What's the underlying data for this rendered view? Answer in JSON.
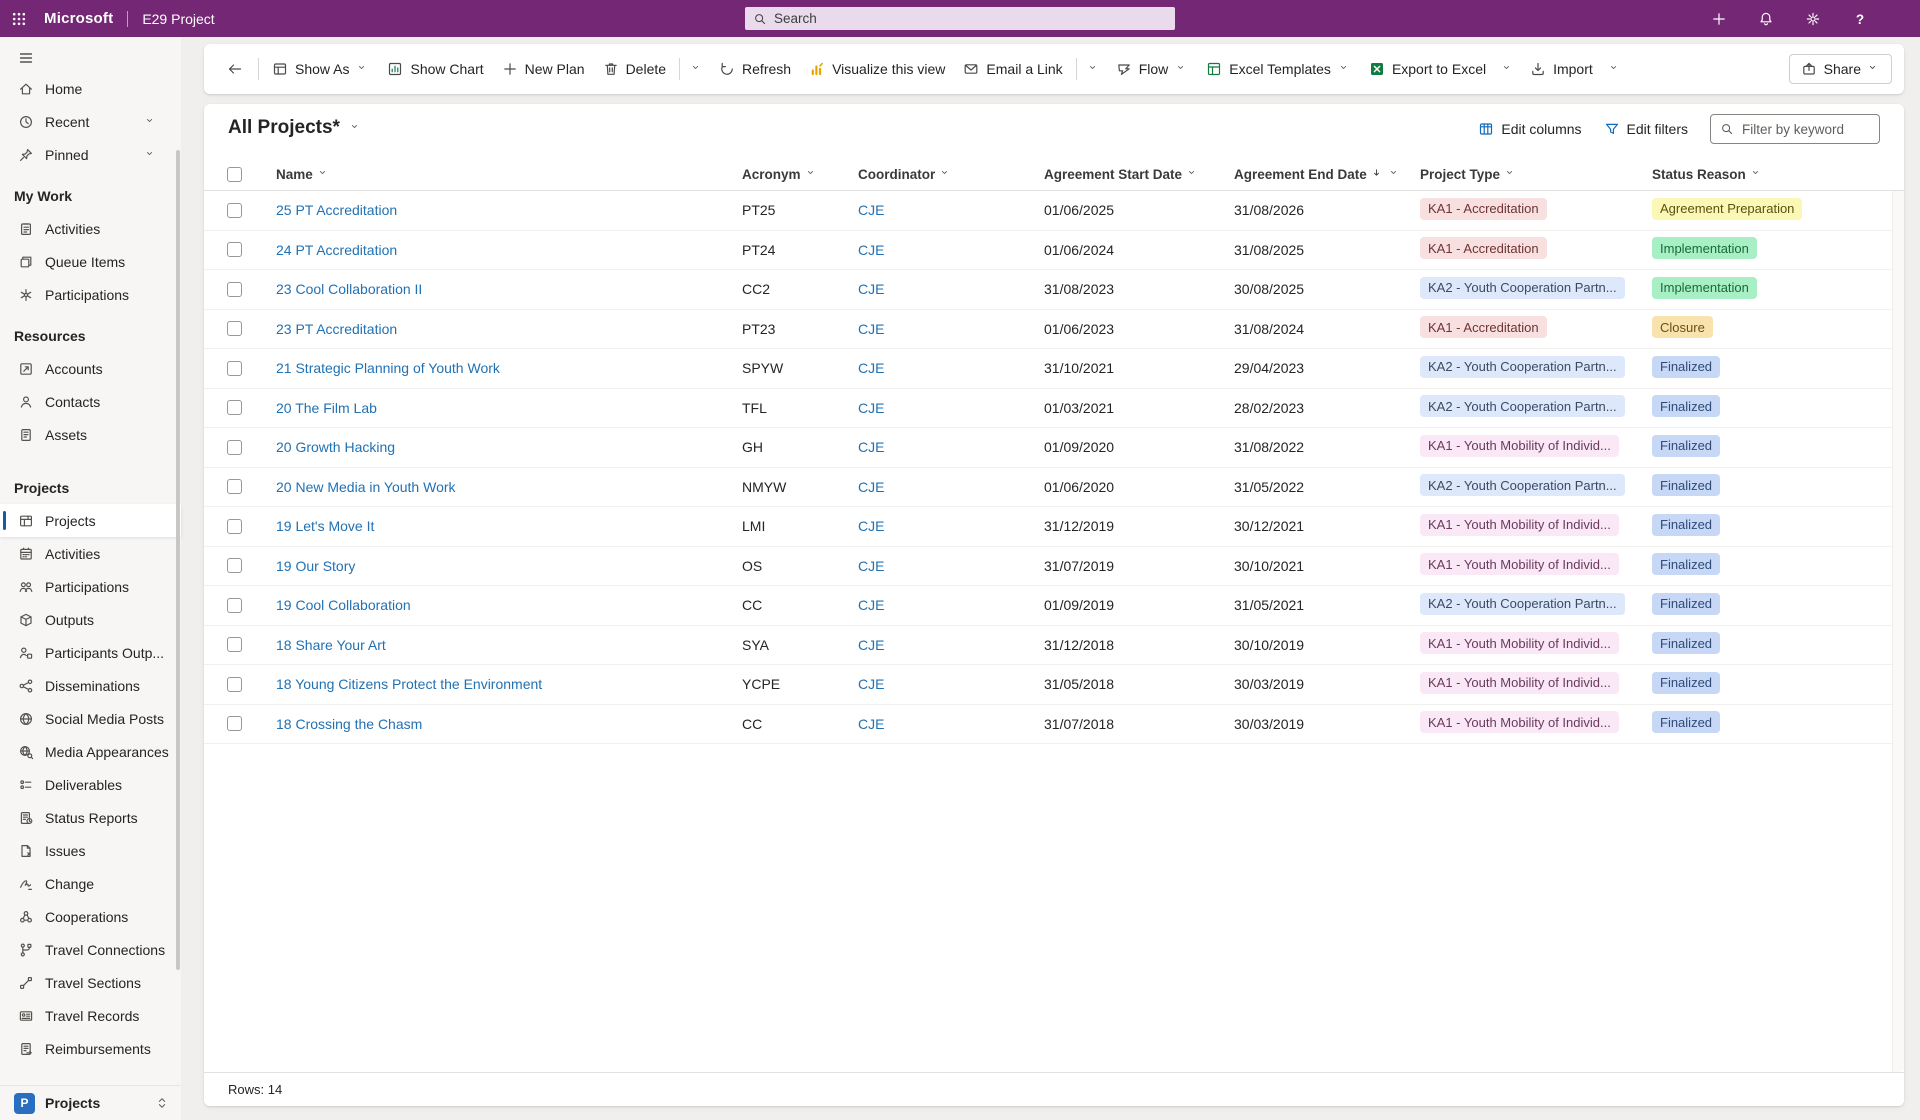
{
  "colors": {
    "topbar": "#742774",
    "accent": "#115EA3",
    "link": "#2271B3"
  },
  "topbar": {
    "brand": "Microsoft",
    "app_name": "E29 Project",
    "search_placeholder": "Search",
    "icons": [
      "add",
      "bell",
      "gear",
      "help"
    ]
  },
  "command_bar": {
    "items": [
      {
        "type": "back",
        "icon": "arrow-left"
      },
      {
        "type": "divider"
      },
      {
        "type": "button",
        "icon": "show-as",
        "label": "Show As",
        "chevron": true
      },
      {
        "type": "button",
        "icon": "show-chart",
        "label": "Show Chart"
      },
      {
        "type": "button",
        "icon": "add",
        "label": "New Plan"
      },
      {
        "type": "button",
        "icon": "delete",
        "label": "Delete"
      },
      {
        "type": "divider"
      },
      {
        "type": "overflow"
      },
      {
        "type": "button",
        "icon": "refresh",
        "label": "Refresh"
      },
      {
        "type": "button",
        "icon": "visualize",
        "label": "Visualize this view"
      },
      {
        "type": "button",
        "icon": "email",
        "label": "Email a Link"
      },
      {
        "type": "divider"
      },
      {
        "type": "overflow"
      },
      {
        "type": "button",
        "icon": "flow",
        "label": "Flow",
        "chevron": true
      },
      {
        "type": "button",
        "icon": "excel-templates",
        "label": "Excel Templates",
        "chevron": true
      },
      {
        "type": "button",
        "icon": "export-excel",
        "label": "Export to Excel"
      },
      {
        "type": "overflow"
      },
      {
        "type": "button",
        "icon": "import",
        "label": "Import"
      },
      {
        "type": "overflow"
      }
    ],
    "share_label": "Share"
  },
  "sidebar": {
    "top_items": [
      {
        "label": "Home",
        "icon": "home"
      },
      {
        "label": "Recent",
        "icon": "clock",
        "chevron": true
      },
      {
        "label": "Pinned",
        "icon": "pin",
        "chevron": true
      }
    ],
    "groups": [
      {
        "header": "My Work",
        "items": [
          {
            "label": "Activities",
            "icon": "clipboard"
          },
          {
            "label": "Queue Items",
            "icon": "queue"
          },
          {
            "label": "Participations",
            "icon": "network"
          }
        ]
      },
      {
        "header": "Resources",
        "items": [
          {
            "label": "Accounts",
            "icon": "accounts"
          },
          {
            "label": "Contacts",
            "icon": "contact"
          },
          {
            "label": "Assets",
            "icon": "asset"
          }
        ]
      },
      {
        "header": "Projects",
        "items": [
          {
            "label": "Projects",
            "icon": "projects",
            "selected": true
          },
          {
            "label": "Activities",
            "icon": "calendar"
          },
          {
            "label": "Participations",
            "icon": "people"
          },
          {
            "label": "Outputs",
            "icon": "cube"
          },
          {
            "label": "Participants Outp...",
            "icon": "person-node"
          },
          {
            "label": "Disseminations",
            "icon": "share-nodes"
          },
          {
            "label": "Social Media Posts",
            "icon": "globe"
          },
          {
            "label": "Media Appearances",
            "icon": "globe-search"
          },
          {
            "label": "Deliverables",
            "icon": "task-list"
          },
          {
            "label": "Status Reports",
            "icon": "report"
          },
          {
            "label": "Issues",
            "icon": "doc-dismiss"
          },
          {
            "label": "Change",
            "icon": "pen"
          },
          {
            "label": "Cooperations",
            "icon": "org"
          },
          {
            "label": "Travel Connections",
            "icon": "flow-nodes"
          },
          {
            "label": "Travel Sections",
            "icon": "route"
          },
          {
            "label": "Travel Records",
            "icon": "id-card"
          },
          {
            "label": "Reimbursements",
            "icon": "receipt"
          }
        ]
      }
    ],
    "area_switcher": {
      "initial": "P",
      "label": "Projects"
    }
  },
  "view": {
    "title": "All Projects*",
    "edit_columns": "Edit columns",
    "edit_filters": "Edit filters",
    "filter_placeholder": "Filter by keyword",
    "rows_label": "Rows: 14"
  },
  "badge_styles": {
    "rose": {
      "bg": "#F9E0E0",
      "fg": "#6E3333"
    },
    "lightblue": {
      "bg": "#DEE8FB",
      "fg": "#3A4A66"
    },
    "pink": {
      "bg": "#FAE8F6",
      "fg": "#693A5E"
    },
    "yellow": {
      "bg": "#FBF7B4",
      "fg": "#5A530F"
    },
    "green": {
      "bg": "#A9EFC5",
      "fg": "#176B38"
    },
    "orange": {
      "bg": "#F8E2AE",
      "fg": "#6E4F12"
    },
    "periwinkle": {
      "bg": "#C7D7F6",
      "fg": "#2F4B78"
    }
  },
  "table": {
    "columns": [
      {
        "label": "Name"
      },
      {
        "label": "Acronym"
      },
      {
        "label": "Coordinator"
      },
      {
        "label": "Agreement Start Date"
      },
      {
        "label": "Agreement End Date",
        "sorted": "desc"
      },
      {
        "label": "Project Type"
      },
      {
        "label": "Status Reason"
      }
    ],
    "rows": [
      {
        "name": "25 PT Accreditation",
        "acronym": "PT25",
        "coordinator": "CJE",
        "start_date": "01/06/2025",
        "end_date": "31/08/2026",
        "project_type": {
          "label": "KA1 - Accreditation",
          "style": "rose"
        },
        "status_reason": {
          "label": "Agreement Preparation",
          "style": "yellow"
        }
      },
      {
        "name": "24 PT Accreditation",
        "acronym": "PT24",
        "coordinator": "CJE",
        "start_date": "01/06/2024",
        "end_date": "31/08/2025",
        "project_type": {
          "label": "KA1 - Accreditation",
          "style": "rose"
        },
        "status_reason": {
          "label": "Implementation",
          "style": "green"
        }
      },
      {
        "name": "23 Cool Collaboration II",
        "acronym": "CC2",
        "coordinator": "CJE",
        "start_date": "31/08/2023",
        "end_date": "30/08/2025",
        "project_type": {
          "label": "KA2 - Youth Cooperation Partn...",
          "style": "lightblue"
        },
        "status_reason": {
          "label": "Implementation",
          "style": "green"
        }
      },
      {
        "name": "23 PT Accreditation",
        "acronym": "PT23",
        "coordinator": "CJE",
        "start_date": "01/06/2023",
        "end_date": "31/08/2024",
        "project_type": {
          "label": "KA1 - Accreditation",
          "style": "rose"
        },
        "status_reason": {
          "label": "Closure",
          "style": "orange"
        }
      },
      {
        "name": "21 Strategic Planning of Youth Work",
        "acronym": "SPYW",
        "coordinator": "CJE",
        "start_date": "31/10/2021",
        "end_date": "29/04/2023",
        "project_type": {
          "label": "KA2 - Youth Cooperation Partn...",
          "style": "lightblue"
        },
        "status_reason": {
          "label": "Finalized",
          "style": "periwinkle"
        }
      },
      {
        "name": "20 The Film Lab",
        "acronym": "TFL",
        "coordinator": "CJE",
        "start_date": "01/03/2021",
        "end_date": "28/02/2023",
        "project_type": {
          "label": "KA2 - Youth Cooperation Partn...",
          "style": "lightblue"
        },
        "status_reason": {
          "label": "Finalized",
          "style": "periwinkle"
        }
      },
      {
        "name": "20 Growth Hacking",
        "acronym": "GH",
        "coordinator": "CJE",
        "start_date": "01/09/2020",
        "end_date": "31/08/2022",
        "project_type": {
          "label": "KA1 - Youth Mobility of Individ...",
          "style": "pink"
        },
        "status_reason": {
          "label": "Finalized",
          "style": "periwinkle"
        }
      },
      {
        "name": "20 New Media in Youth Work",
        "acronym": "NMYW",
        "coordinator": "CJE",
        "start_date": "01/06/2020",
        "end_date": "31/05/2022",
        "project_type": {
          "label": "KA2 - Youth Cooperation Partn...",
          "style": "lightblue"
        },
        "status_reason": {
          "label": "Finalized",
          "style": "periwinkle"
        }
      },
      {
        "name": "19 Let's Move It",
        "acronym": "LMI",
        "coordinator": "CJE",
        "start_date": "31/12/2019",
        "end_date": "30/12/2021",
        "project_type": {
          "label": "KA1 - Youth Mobility of Individ...",
          "style": "pink"
        },
        "status_reason": {
          "label": "Finalized",
          "style": "periwinkle"
        }
      },
      {
        "name": "19 Our Story",
        "acronym": "OS",
        "coordinator": "CJE",
        "start_date": "31/07/2019",
        "end_date": "30/10/2021",
        "project_type": {
          "label": "KA1 - Youth Mobility of Individ...",
          "style": "pink"
        },
        "status_reason": {
          "label": "Finalized",
          "style": "periwinkle"
        }
      },
      {
        "name": "19 Cool Collaboration",
        "acronym": "CC",
        "coordinator": "CJE",
        "start_date": "01/09/2019",
        "end_date": "31/05/2021",
        "project_type": {
          "label": "KA2 - Youth Cooperation Partn...",
          "style": "lightblue"
        },
        "status_reason": {
          "label": "Finalized",
          "style": "periwinkle"
        }
      },
      {
        "name": "18 Share Your Art",
        "acronym": "SYA",
        "coordinator": "CJE",
        "start_date": "31/12/2018",
        "end_date": "30/10/2019",
        "project_type": {
          "label": "KA1 - Youth Mobility of Individ...",
          "style": "pink"
        },
        "status_reason": {
          "label": "Finalized",
          "style": "periwinkle"
        }
      },
      {
        "name": "18 Young Citizens Protect the Environment",
        "acronym": "YCPE",
        "coordinator": "CJE",
        "start_date": "31/05/2018",
        "end_date": "30/03/2019",
        "project_type": {
          "label": "KA1 - Youth Mobility of Individ...",
          "style": "pink"
        },
        "status_reason": {
          "label": "Finalized",
          "style": "periwinkle"
        }
      },
      {
        "name": "18 Crossing the Chasm",
        "acronym": "CC",
        "coordinator": "CJE",
        "start_date": "31/07/2018",
        "end_date": "30/03/2019",
        "project_type": {
          "label": "KA1 - Youth Mobility of Individ...",
          "style": "pink"
        },
        "status_reason": {
          "label": "Finalized",
          "style": "periwinkle"
        }
      }
    ]
  }
}
